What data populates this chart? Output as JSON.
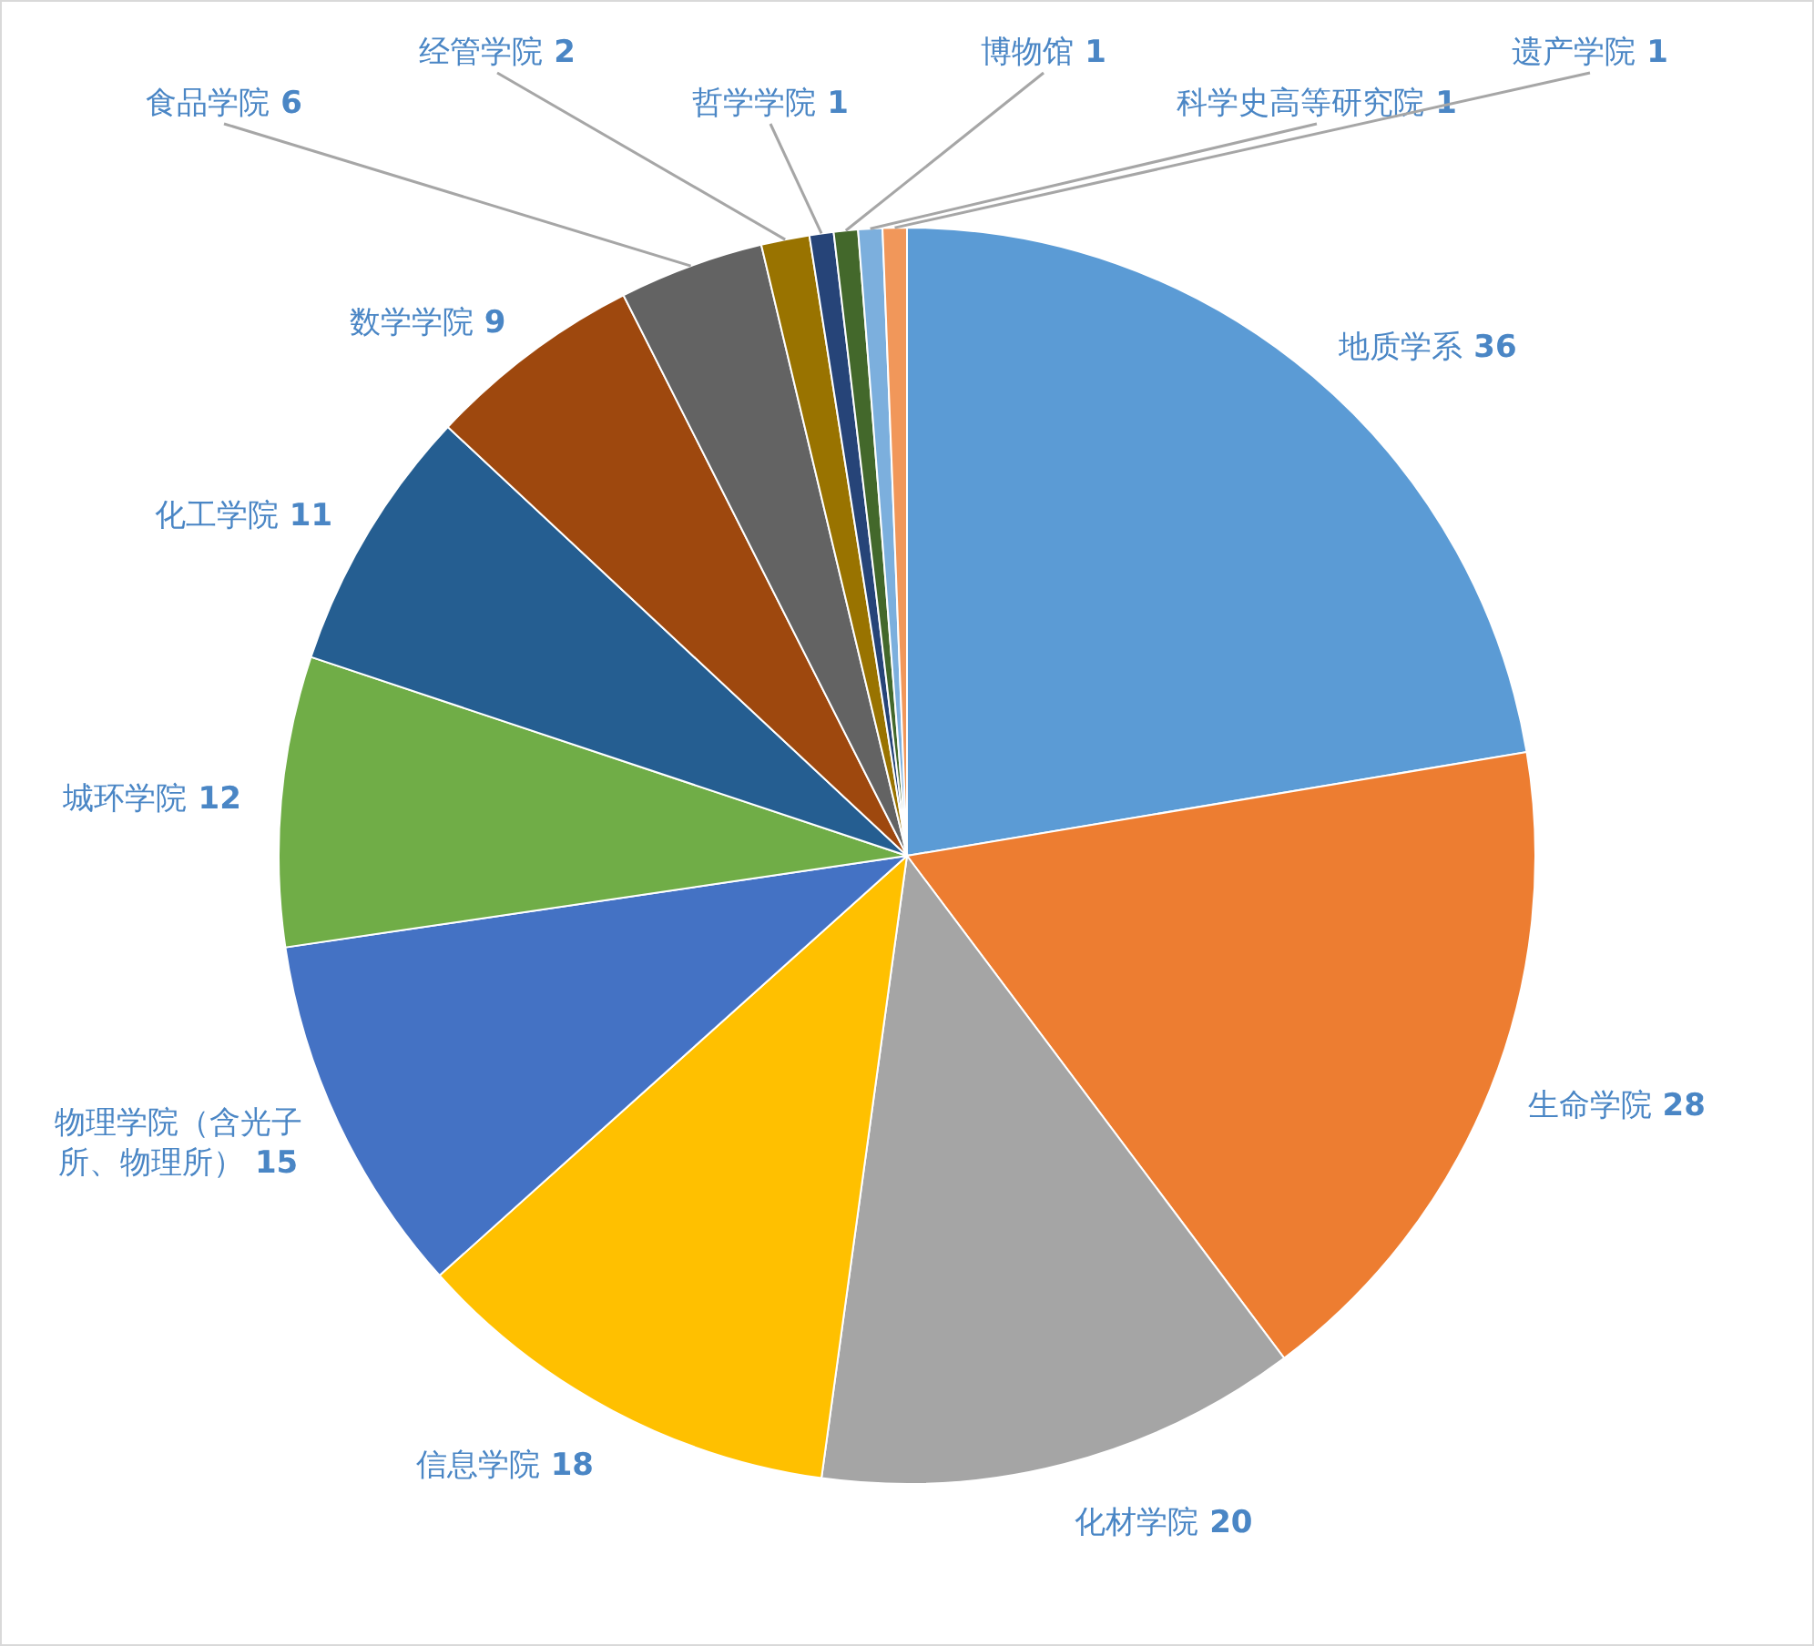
{
  "chart_data": {
    "type": "pie",
    "categories": [
      "地质学系",
      "生命学院",
      "化材学院",
      "信息学院",
      "物理学院（含光子所、物理所）",
      "城环学院",
      "化工学院",
      "数学学院",
      "食品学院",
      "经管学院",
      "哲学学院",
      "博物馆",
      "科学史高等研究院",
      "遗产学院"
    ],
    "values": [
      36,
      28,
      20,
      18,
      15,
      12,
      11,
      9,
      6,
      2,
      1,
      1,
      1,
      1
    ],
    "colors": [
      "#5b9bd5",
      "#ed7d31",
      "#a5a5a5",
      "#ffc000",
      "#4472c4",
      "#70ad47",
      "#255e91",
      "#9e480e",
      "#636363",
      "#997300",
      "#264478",
      "#43682b",
      "#7cafdd",
      "#f1975a"
    ],
    "data_labels": true
  }
}
